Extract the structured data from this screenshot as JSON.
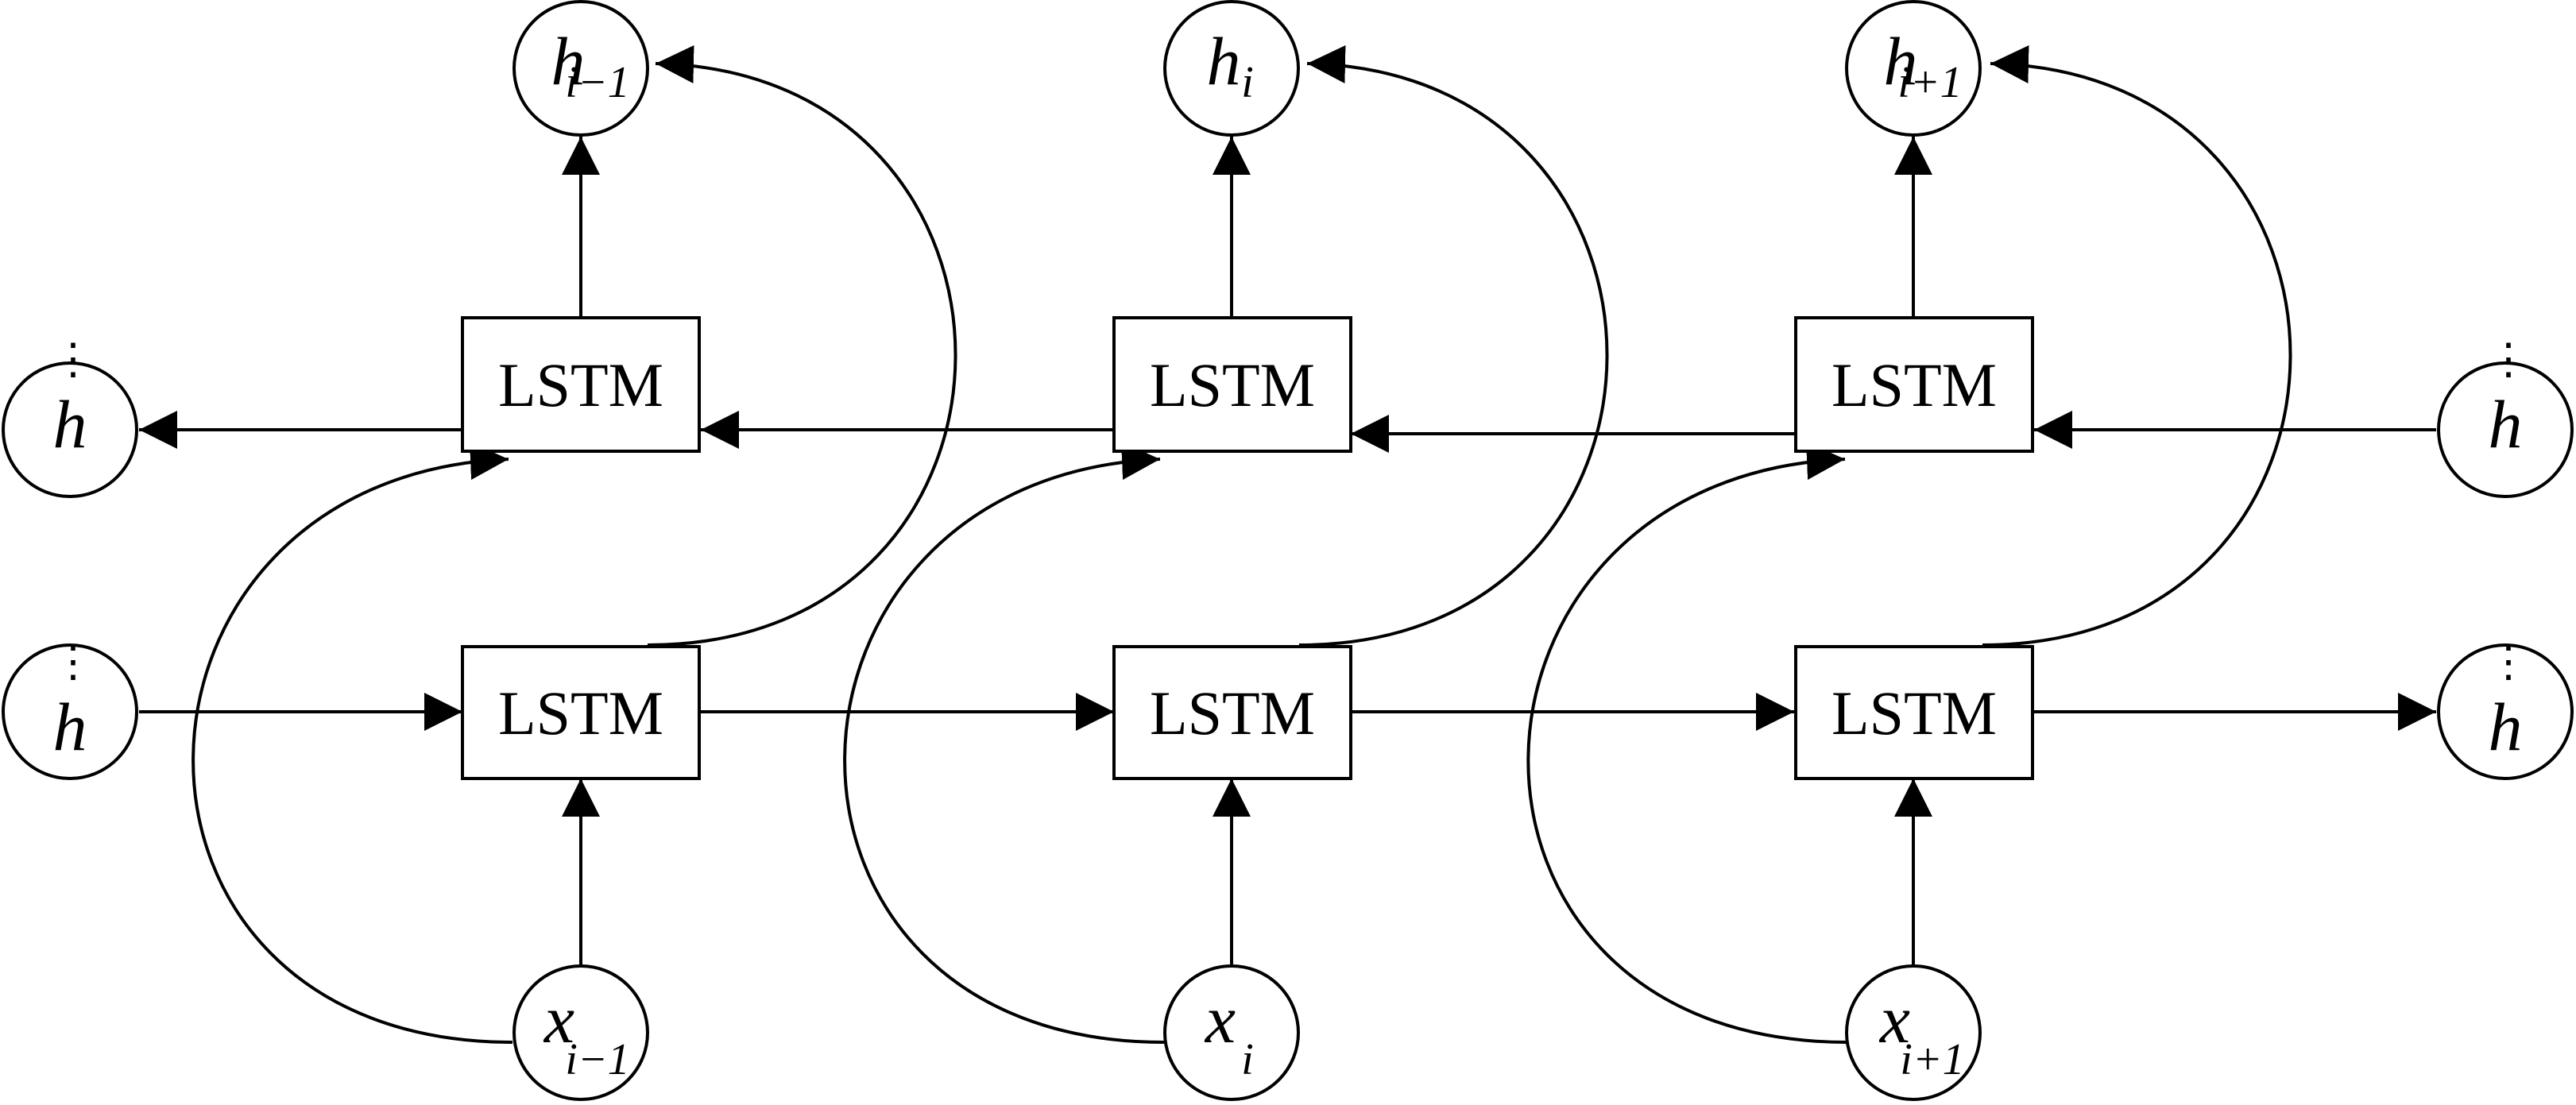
{
  "diagram": {
    "lstm_label": "LSTM",
    "outputs": [
      {
        "var": "h",
        "sub": "i−1"
      },
      {
        "var": "h",
        "sub": "i"
      },
      {
        "var": "h",
        "sub": "i+1"
      }
    ],
    "inputs": [
      {
        "var": "x",
        "sub": "i−1"
      },
      {
        "var": "x",
        "sub": "i"
      },
      {
        "var": "x",
        "sub": "i+1"
      }
    ],
    "state_nodes": [
      {
        "var": "h",
        "dots": "⋮"
      },
      {
        "var": "h",
        "dots": "⋮"
      },
      {
        "var": "h",
        "dots": "⋮"
      },
      {
        "var": "h",
        "dots": "⋮"
      }
    ]
  }
}
